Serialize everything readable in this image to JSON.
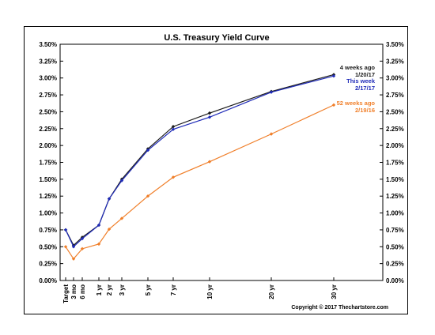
{
  "chart_data": {
    "type": "line",
    "title": "U.S. Treasury Yield Curve",
    "categories": [
      "Target",
      "3 mo",
      "6 mo",
      "1 yr",
      "2 yr",
      "3 yr",
      "5 yr",
      "7 yr",
      "10 yr",
      "20 yr",
      "30 yr"
    ],
    "x_positions": [
      0,
      0.25,
      0.5,
      1,
      2,
      3,
      5,
      7,
      10,
      20,
      30
    ],
    "y_ticks": [
      "0.00%",
      "0.25%",
      "0.50%",
      "0.75%",
      "1.00%",
      "1.25%",
      "1.50%",
      "1.75%",
      "2.00%",
      "2.25%",
      "2.50%",
      "2.75%",
      "3.00%",
      "3.25%",
      "3.50%"
    ],
    "ylim": [
      0,
      3.5
    ],
    "grid": false,
    "series": [
      {
        "name": "4 weeks ago",
        "date": "1/20/17",
        "color": "#1a1a1a",
        "values": [
          0.75,
          0.52,
          0.64,
          0.82,
          1.21,
          1.5,
          1.95,
          2.28,
          2.48,
          2.8,
          3.05
        ]
      },
      {
        "name": "This week",
        "date": "2/17/17",
        "color": "#1f2bb8",
        "values": [
          0.75,
          0.5,
          0.62,
          0.82,
          1.21,
          1.48,
          1.93,
          2.24,
          2.42,
          2.79,
          3.03
        ]
      },
      {
        "name": "52 weeks ago",
        "date": "2/19/16",
        "color": "#f07f2a",
        "values": [
          0.5,
          0.32,
          0.47,
          0.54,
          0.76,
          0.92,
          1.25,
          1.53,
          1.76,
          2.17,
          2.6
        ]
      }
    ],
    "legend_placement": "top-right",
    "copyright": "Copyright © 2017 Thechartstore.com"
  }
}
